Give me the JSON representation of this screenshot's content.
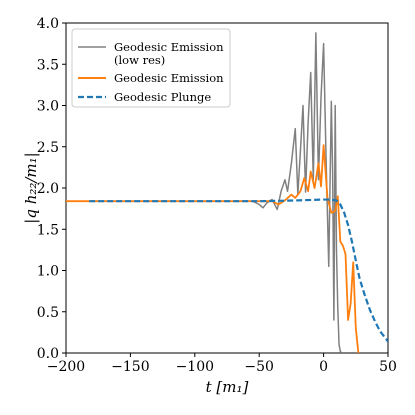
{
  "chart_data": {
    "type": "line",
    "xlabel": "t [m₁]",
    "ylabel": "|q h₂₂/m₁|",
    "xlim": [
      -200,
      50
    ],
    "ylim": [
      0,
      4.0
    ],
    "xticks": [
      -200,
      -150,
      -100,
      -50,
      0,
      50
    ],
    "xtick_labels": [
      "−200",
      "−150",
      "−100",
      "−50",
      "0",
      "50"
    ],
    "yticks": [
      0,
      0.5,
      1.0,
      1.5,
      2.0,
      2.5,
      3.0,
      3.5,
      4.0
    ],
    "ytick_labels": [
      "0.0",
      "0.5",
      "1.0",
      "1.5",
      "2.0",
      "2.5",
      "3.0",
      "3.5",
      "4.0"
    ],
    "grid": false,
    "legend_position": "top-left",
    "series": [
      {
        "name": "Geodesic Emission",
        "name_line2": "(low res)",
        "color": "#808080",
        "style": "solid",
        "x": [
          -200,
          -60,
          -55,
          -50,
          -47,
          -44,
          -40,
          -36,
          -33,
          -30,
          -28,
          -25,
          -22,
          -20,
          -18,
          -16,
          -14,
          -12,
          -10,
          -8,
          -6,
          -4,
          -2,
          0,
          2,
          4,
          6,
          7,
          8,
          9,
          10,
          11,
          12,
          13,
          14
        ],
        "y": [
          1.84,
          1.84,
          1.84,
          1.8,
          1.76,
          1.82,
          1.86,
          1.74,
          1.96,
          2.1,
          1.96,
          2.3,
          2.72,
          1.92,
          2.45,
          3.0,
          1.95,
          2.8,
          3.4,
          2.1,
          3.88,
          2.1,
          3.1,
          3.75,
          2.3,
          1.05,
          3.05,
          2.2,
          0.4,
          3.0,
          1.25,
          0.55,
          0.1,
          0.02,
          0.0
        ]
      },
      {
        "name": "Geodesic Emission",
        "color": "#ff7f0e",
        "style": "solid",
        "x": [
          -200,
          -40,
          -35,
          -30,
          -25,
          -22,
          -18,
          -15,
          -12,
          -10,
          -7,
          -4,
          -2,
          0,
          3,
          6,
          9,
          11,
          13,
          15,
          17,
          19,
          21,
          23,
          25,
          27
        ],
        "y": [
          1.84,
          1.84,
          1.8,
          1.85,
          1.92,
          1.88,
          1.96,
          2.12,
          1.96,
          2.2,
          2.0,
          2.3,
          2.02,
          2.52,
          1.88,
          1.7,
          1.72,
          1.9,
          1.35,
          1.3,
          1.2,
          0.4,
          0.6,
          1.1,
          0.3,
          0.0
        ]
      },
      {
        "name": "Geodesic Plunge",
        "color": "#1f77b4",
        "style": "dashed",
        "x": [
          -182,
          -100,
          -50,
          -20,
          0,
          5,
          10,
          13,
          16,
          19,
          22,
          25,
          28,
          32,
          36,
          40,
          44,
          48,
          50
        ],
        "y": [
          1.84,
          1.84,
          1.84,
          1.85,
          1.86,
          1.86,
          1.85,
          1.8,
          1.7,
          1.55,
          1.35,
          1.12,
          0.9,
          0.7,
          0.52,
          0.38,
          0.26,
          0.18,
          0.14
        ]
      }
    ]
  }
}
